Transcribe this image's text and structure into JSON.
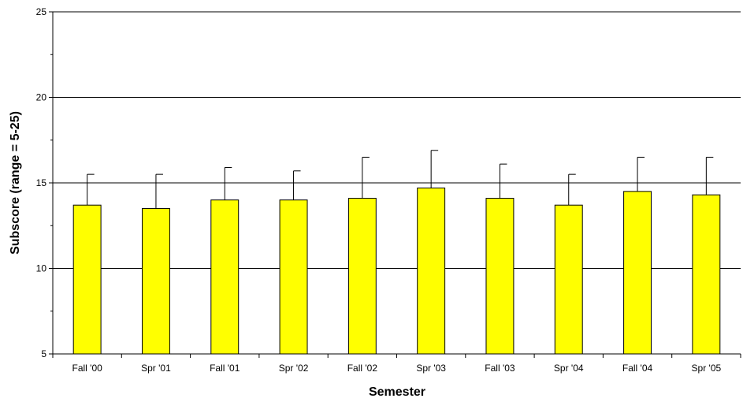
{
  "chart_data": {
    "type": "bar",
    "categories": [
      "Fall '00",
      "Spr '01",
      "Fall '01",
      "Spr '02",
      "Fall '02",
      "Spr '03",
      "Fall '03",
      "Spr '04",
      "Fall '04",
      "Spr '05"
    ],
    "values": [
      13.7,
      13.5,
      14.0,
      14.0,
      14.1,
      14.7,
      14.1,
      13.7,
      14.5,
      14.3
    ],
    "error_upper": [
      15.5,
      15.5,
      15.9,
      15.7,
      16.5,
      16.9,
      16.1,
      15.5,
      16.5,
      16.5
    ],
    "title": "",
    "xlabel": "Semester",
    "ylabel": "Subscore (range = 5-25)",
    "ylim": [
      5,
      25
    ],
    "yticks": [
      5,
      10,
      15,
      20,
      25
    ],
    "grid": true,
    "bar_color": "#ffff00",
    "bar_edge_color": "#000000"
  }
}
